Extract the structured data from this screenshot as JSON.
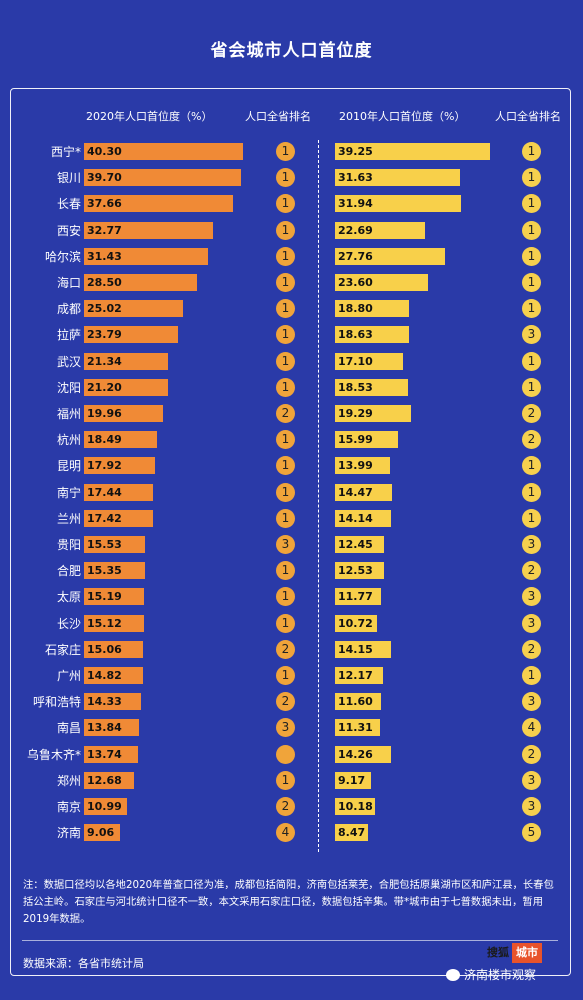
{
  "title": "省会城市人口首位度",
  "headers": {
    "v2020": "2020年人口首位度（%）",
    "rank2020": "人口全省排名",
    "v2010": "2010年人口首位度（%）",
    "rank2010": "人口全省排名"
  },
  "colors": {
    "background": "#2a3aa8",
    "bar_2020": "#f08a36",
    "bar_2010": "#f8d04a",
    "rank_2020": "#f0a43a",
    "rank_2010": "#f6d04e"
  },
  "chart_data": {
    "type": "bar",
    "orientation": "horizontal",
    "title": "省会城市人口首位度",
    "categories": [
      "西宁*",
      "银川",
      "长春",
      "西安",
      "哈尔滨",
      "海口",
      "成都",
      "拉萨",
      "武汉",
      "沈阳",
      "福州",
      "杭州",
      "昆明",
      "南宁",
      "兰州",
      "贵阳",
      "合肥",
      "太原",
      "长沙",
      "石家庄",
      "广州",
      "呼和浩特",
      "南昌",
      "乌鲁木齐*",
      "郑州",
      "南京",
      "济南"
    ],
    "series": [
      {
        "name": "2020年人口首位度（%）",
        "values": [
          40.3,
          39.7,
          37.66,
          32.77,
          31.43,
          28.5,
          25.02,
          23.79,
          21.34,
          21.2,
          19.96,
          18.49,
          17.92,
          17.44,
          17.42,
          15.53,
          15.35,
          15.19,
          15.12,
          15.06,
          14.82,
          14.33,
          13.84,
          13.74,
          12.68,
          10.99,
          9.06
        ],
        "labels": [
          "40.30",
          "39.70",
          "37.66",
          "32.77",
          "31.43",
          "28.50",
          "25.02",
          "23.79",
          "21.34",
          "21.20",
          "19.96",
          "18.49",
          "17.92",
          "17.44",
          "17.42",
          "15.53",
          "15.35",
          "15.19",
          "15.12",
          "15.06",
          "14.82",
          "14.33",
          "13.84",
          "13.74",
          "12.68",
          "10.99",
          "9.06"
        ]
      },
      {
        "name": "2010年人口首位度（%）",
        "values": [
          39.25,
          31.63,
          31.94,
          22.69,
          27.76,
          23.6,
          18.8,
          18.63,
          17.1,
          18.53,
          19.29,
          15.99,
          13.99,
          14.47,
          14.14,
          12.45,
          12.53,
          11.77,
          10.72,
          14.15,
          12.17,
          11.6,
          11.31,
          14.26,
          9.17,
          10.18,
          8.47
        ],
        "labels": [
          "39.25",
          "31.63",
          "31.94",
          "22.69",
          "27.76",
          "23.60",
          "18.80",
          "18.63",
          "17.10",
          "18.53",
          "19.29",
          "15.99",
          "13.99",
          "14.47",
          "14.14",
          "12.45",
          "12.53",
          "11.77",
          "10.72",
          "14.15",
          "12.17",
          "11.60",
          "11.31",
          "14.26",
          "9.17",
          "10.18",
          "8.47"
        ]
      }
    ],
    "ranks_2020": [
      "1",
      "1",
      "1",
      "1",
      "1",
      "1",
      "1",
      "1",
      "1",
      "1",
      "2",
      "1",
      "1",
      "1",
      "1",
      "3",
      "1",
      "1",
      "1",
      "2",
      "1",
      "2",
      "3",
      "",
      "1",
      "2",
      "4"
    ],
    "ranks_2010": [
      "1",
      "1",
      "1",
      "1",
      "1",
      "1",
      "1",
      "3",
      "1",
      "1",
      "2",
      "2",
      "1",
      "1",
      "1",
      "3",
      "2",
      "3",
      "3",
      "2",
      "1",
      "3",
      "4",
      "2",
      "3",
      "3",
      "5"
    ],
    "xlim": [
      0,
      42
    ]
  },
  "note": "注：数据口径均以各地2020年普查口径为准，成都包括简阳，济南包括莱芜，合肥包括原巢湖市区和庐江县，长春包括公主岭。石家庄与河北统计口径不一致，本文采用石家庄口径，数据包括辛集。带*城市由于七普数据未出，暂用2019年数据。",
  "source": "数据来源：各省市统计局",
  "watermark": {
    "logo_text": "搜狐",
    "logo_box": "城市",
    "account": "济南楼市观察"
  }
}
